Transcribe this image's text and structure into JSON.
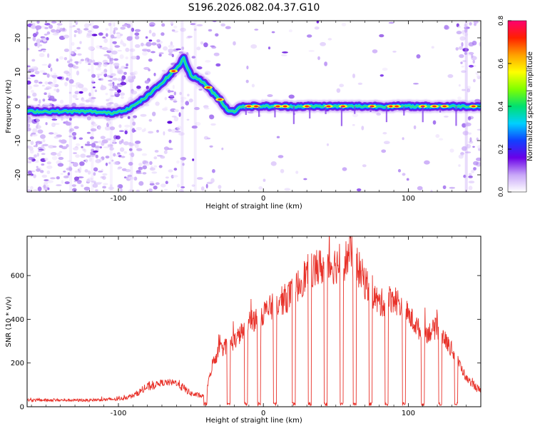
{
  "title": "S196.2026.082.04.37.G10",
  "chart_data": [
    {
      "type": "heatmap",
      "xlabel": "Height of straight line (km)",
      "ylabel": "Frequency (Hz)",
      "xlim": [
        -163,
        150
      ],
      "ylim": [
        -25,
        25
      ],
      "x_ticks": [
        -100,
        0,
        100
      ],
      "y_ticks": [
        -20,
        -10,
        0,
        10,
        20
      ],
      "colorbar": {
        "label": "Normalized spectral amplitude",
        "range": [
          0,
          0.8
        ],
        "ticks": [
          "0.0",
          "0.2",
          "0.4",
          "0.6",
          "0.8"
        ],
        "colors": [
          "#ffffff",
          "#c8a6f8",
          "#6a00e8",
          "#1040ff",
          "#00d0ff",
          "#00e070",
          "#80ff00",
          "#ffff00",
          "#ffa000",
          "#ff2000",
          "#ff0070"
        ]
      },
      "ridge": {
        "x": [
          -163,
          -140,
          -120,
          -105,
          -95,
          -88,
          -80,
          -72,
          -65,
          -58,
          -55,
          -50,
          -45,
          -40,
          -35,
          -30,
          -25,
          -20,
          -15,
          -10,
          -5,
          0,
          20,
          40,
          60,
          80,
          100,
          120,
          150
        ],
        "freq": [
          -1.5,
          -1.5,
          -1.5,
          -2.0,
          -1.0,
          0.5,
          3.0,
          6.0,
          9.0,
          12.0,
          14.0,
          9.0,
          8.0,
          6.5,
          4.0,
          2.0,
          -1.0,
          -1.5,
          0.0,
          0.0,
          0.0,
          0.0,
          0.0,
          0.0,
          0.0,
          0.0,
          0.0,
          0.0,
          0.0
        ]
      }
    },
    {
      "type": "line",
      "xlabel": "Height of straight line (km)",
      "ylabel": "SNR (10 * v/v)",
      "xlim": [
        -163,
        150
      ],
      "ylim": [
        0,
        780
      ],
      "x_ticks": [
        -100,
        0,
        100
      ],
      "y_ticks": [
        0,
        200,
        400,
        600
      ],
      "color": "#e8322a",
      "envelope": {
        "x": [
          -163,
          -120,
          -100,
          -90,
          -80,
          -70,
          -60,
          -50,
          -40,
          -35,
          -30,
          -20,
          -10,
          0,
          10,
          20,
          30,
          40,
          50,
          55,
          60,
          65,
          70,
          80,
          90,
          100,
          110,
          120,
          130,
          135,
          140,
          150
        ],
        "y": [
          30,
          30,
          35,
          50,
          90,
          110,
          110,
          60,
          45,
          200,
          260,
          300,
          380,
          430,
          470,
          520,
          610,
          640,
          650,
          660,
          700,
          640,
          570,
          470,
          500,
          420,
          330,
          360,
          260,
          200,
          130,
          70
        ]
      },
      "dropouts": [
        -40,
        -24,
        -12,
        -3,
        8,
        21,
        32,
        43,
        54,
        63,
        74,
        85,
        97,
        110,
        122,
        133
      ]
    }
  ]
}
